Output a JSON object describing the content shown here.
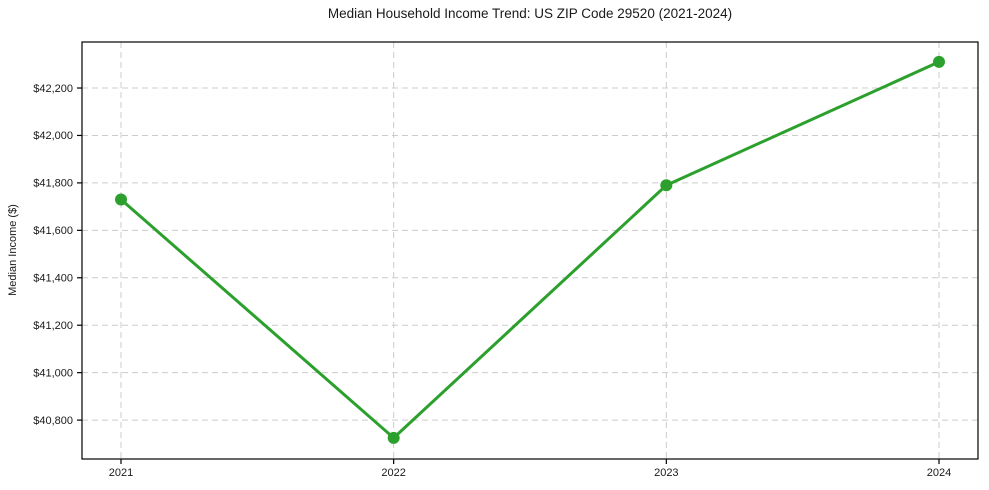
{
  "page": {
    "background": "#ffffff"
  },
  "chart_data": {
    "type": "line",
    "title": "Median Household Income Trend: US ZIP Code 29520 (2021-2024)",
    "xlabel": "",
    "ylabel": "Median Income ($)",
    "categories": [
      "2021",
      "2022",
      "2023",
      "2024"
    ],
    "series": [
      {
        "name": "Median Household Income",
        "values": [
          41730,
          40725,
          41790,
          42310
        ],
        "color": "#2ca02c",
        "marker": "circle"
      }
    ],
    "ylim": [
      40636,
      42394
    ],
    "yticks": [
      40800,
      41000,
      41200,
      41400,
      41600,
      41800,
      42000,
      42200
    ],
    "ytick_labels": [
      "$40,800",
      "$41,000",
      "$41,200",
      "$41,400",
      "$41,600",
      "$41,800",
      "$42,000",
      "$42,200"
    ],
    "grid": true,
    "grid_style": "dashed",
    "grid_color": "#cccccc",
    "axis_color": "#000000",
    "text_color": "#1a1a1a",
    "legend": "none",
    "line_width": 3,
    "marker_size": 6
  }
}
